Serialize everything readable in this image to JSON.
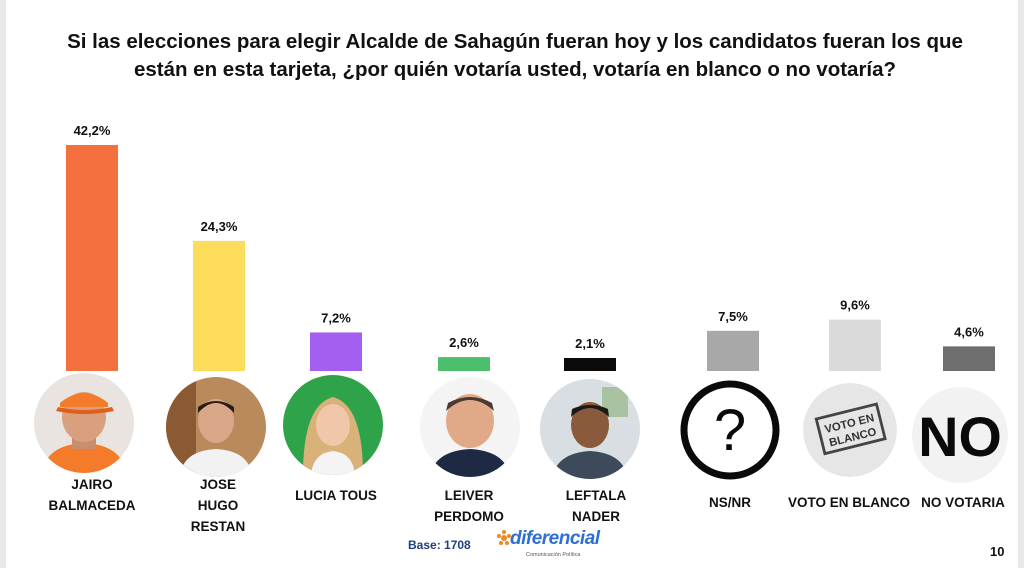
{
  "chart_data": {
    "type": "bar",
    "title": "Si las elecciones para elegir Alcalde de Sahagún fueran hoy  y los candidatos fueran los que están en esta tarjeta, ¿por quién votaría usted, votaría en blanco o no votaría?",
    "categories": [
      "JAIRO\nBALMACEDA",
      "JOSE\nHUGO\nRESTAN",
      "LUCIA TOUS",
      "LEIVER\nPERDOMO",
      "LEFTALA\nNADER",
      "NS/NR",
      "VOTO EN BLANCO",
      "NO VOTARIA"
    ],
    "values": [
      42.2,
      24.3,
      7.2,
      2.6,
      2.1,
      7.5,
      9.6,
      4.6
    ],
    "value_labels": [
      "42,2%",
      "24,3%",
      "7,2%",
      "2,6%",
      "2,1%",
      "7,5%",
      "9,6%",
      "4,6%"
    ],
    "bar_colors": [
      "#f4703f",
      "#fcdc5a",
      "#a45ef0",
      "#4cbf6c",
      "#0a0a0a",
      "#a8a8a8",
      "#dadada",
      "#6e6e6e"
    ],
    "xlabel": "",
    "ylabel": "",
    "ylim": [
      0,
      42.2
    ],
    "grid": false,
    "legend": "none"
  },
  "icons": {
    "ns_nr": "question-mark-icon",
    "blank_vote": "blank-vote-stamp-icon",
    "no_vote": "no-text-icon"
  },
  "blank_vote_stamp": "VOTO EN BLANCO",
  "no_vote_text": "NO",
  "question_mark": "?",
  "footer": {
    "base": "Base: 1708",
    "logo": "diferencial",
    "logo_sub": "Comunicación Política",
    "page": "10"
  }
}
